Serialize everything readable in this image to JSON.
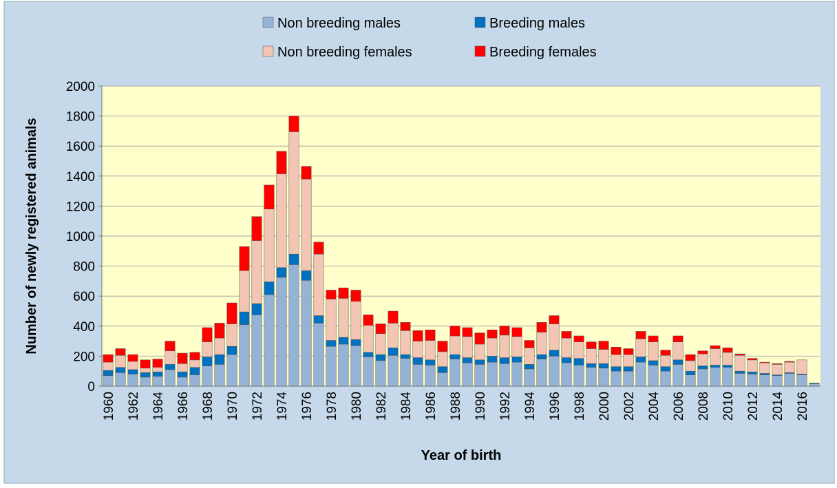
{
  "chart_data": {
    "type": "stacked_bar",
    "xlabel": "Year of birth",
    "ylabel": "Number of newly registered animals",
    "categories": [
      "1960",
      null,
      "1962",
      null,
      "1964",
      null,
      "1966",
      null,
      "1968",
      null,
      "1970",
      null,
      "1972",
      null,
      "1974",
      null,
      "1976",
      null,
      "1978",
      null,
      "1980",
      null,
      "1982",
      null,
      "1984",
      null,
      "1986",
      null,
      "1988",
      null,
      "1990",
      null,
      "1992",
      null,
      "1994",
      null,
      "1996",
      null,
      "1998",
      null,
      "2000",
      null,
      "2002",
      null,
      "2004",
      null,
      "2006",
      null,
      "2008",
      null,
      "2010",
      null,
      "2012",
      null,
      "2014",
      null,
      "2016",
      null
    ],
    "series": [
      {
        "name": "Non breeding males",
        "color": "#95b3d7",
        "values": [
          70,
          90,
          80,
          60,
          65,
          110,
          60,
          75,
          135,
          145,
          210,
          410,
          475,
          610,
          725,
          810,
          705,
          420,
          265,
          280,
          270,
          195,
          170,
          205,
          185,
          145,
          140,
          90,
          180,
          155,
          145,
          160,
          150,
          160,
          115,
          180,
          200,
          155,
          140,
          125,
          120,
          100,
          100,
          160,
          140,
          100,
          145,
          75,
          115,
          125,
          125,
          85,
          80,
          75,
          70,
          85,
          75,
          15
        ]
      },
      {
        "name": "Breeding males",
        "color": "#0070c0",
        "values": [
          35,
          35,
          30,
          30,
          30,
          35,
          35,
          50,
          60,
          65,
          55,
          85,
          75,
          85,
          65,
          70,
          65,
          50,
          40,
          45,
          40,
          30,
          40,
          50,
          25,
          45,
          35,
          40,
          30,
          35,
          30,
          40,
          40,
          35,
          30,
          30,
          40,
          35,
          45,
          25,
          30,
          30,
          30,
          35,
          30,
          30,
          30,
          25,
          20,
          15,
          15,
          15,
          15,
          10,
          5,
          5,
          5,
          5
        ]
      },
      {
        "name": "Non breeding females",
        "color": "#f2c5b4",
        "values": [
          55,
          80,
          55,
          30,
          30,
          90,
          55,
          50,
          100,
          110,
          150,
          275,
          420,
          485,
          625,
          815,
          610,
          410,
          275,
          260,
          255,
          180,
          140,
          165,
          160,
          110,
          130,
          100,
          125,
          140,
          105,
          120,
          150,
          135,
          110,
          150,
          175,
          130,
          110,
          100,
          95,
          80,
          80,
          120,
          125,
          75,
          120,
          70,
          80,
          110,
          85,
          105,
          80,
          70,
          70,
          70,
          95,
          0
        ]
      },
      {
        "name": "Breeding females",
        "color": "#ff0000",
        "values": [
          50,
          45,
          45,
          55,
          55,
          65,
          70,
          50,
          95,
          100,
          140,
          160,
          160,
          160,
          150,
          105,
          85,
          80,
          60,
          70,
          75,
          70,
          65,
          80,
          55,
          70,
          70,
          70,
          65,
          60,
          75,
          55,
          60,
          60,
          50,
          65,
          55,
          45,
          40,
          45,
          55,
          50,
          40,
          50,
          40,
          35,
          40,
          40,
          20,
          20,
          30,
          10,
          10,
          5,
          5,
          5,
          0,
          0
        ]
      }
    ],
    "ylim": [
      0,
      2000
    ],
    "yticks": [
      0,
      200,
      400,
      600,
      800,
      1000,
      1200,
      1400,
      1600,
      1800,
      2000
    ],
    "grid": true
  }
}
